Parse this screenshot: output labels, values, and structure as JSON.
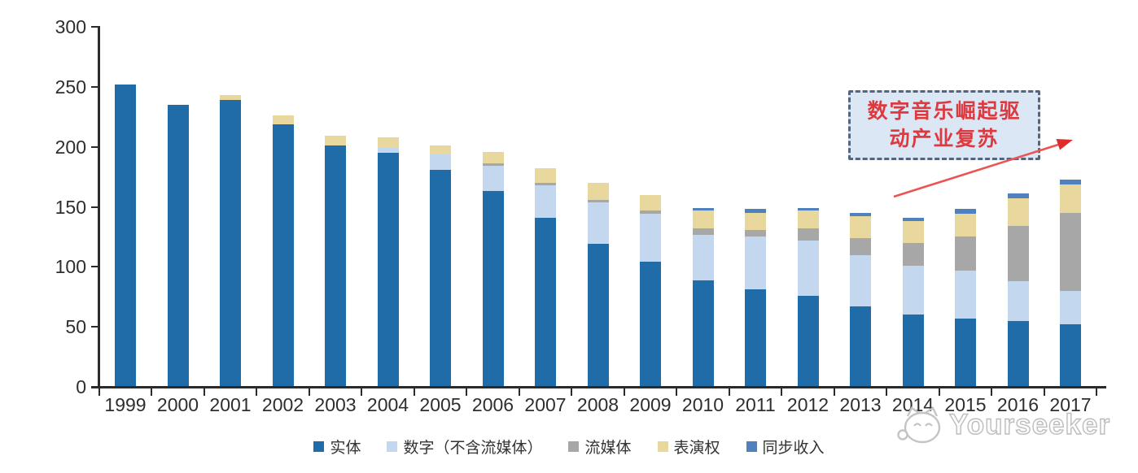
{
  "chart_data": {
    "type": "bar",
    "subtype": "stacked",
    "title": "",
    "xlabel": "",
    "ylabel": "",
    "categories": [
      "1999",
      "2000",
      "2001",
      "2002",
      "2003",
      "2004",
      "2005",
      "2006",
      "2007",
      "2008",
      "2009",
      "2010",
      "2011",
      "2012",
      "2013",
      "2014",
      "2015",
      "2016",
      "2017"
    ],
    "series": [
      {
        "name": "实体",
        "color": "#1f6ca8",
        "values": [
          252,
          235,
          239,
          219,
          201,
          195,
          181,
          163,
          141,
          119,
          104,
          89,
          81,
          76,
          67,
          60,
          57,
          55,
          52
        ]
      },
      {
        "name": "数字（不含流媒体）",
        "color": "#c3d7ee",
        "values": [
          0,
          0,
          0,
          0,
          0,
          4,
          13,
          21,
          27,
          35,
          40,
          38,
          44,
          46,
          43,
          41,
          40,
          33,
          28
        ]
      },
      {
        "name": "流媒体",
        "color": "#a7a7a7",
        "values": [
          0,
          0,
          0,
          0,
          0,
          0,
          0,
          2,
          2,
          2,
          3,
          5,
          6,
          10,
          14,
          19,
          28,
          46,
          65
        ]
      },
      {
        "name": "表演权",
        "color": "#e9d89d",
        "values": [
          0,
          0,
          4,
          7,
          8,
          9,
          7,
          10,
          12,
          14,
          13,
          15,
          14,
          15,
          18,
          18,
          19,
          23,
          24
        ]
      },
      {
        "name": "同步收入",
        "color": "#4e81bd",
        "values": [
          0,
          0,
          0,
          0,
          0,
          0,
          0,
          0,
          0,
          0,
          0,
          2,
          3,
          2,
          3,
          3,
          4,
          4,
          4
        ]
      }
    ],
    "ylim": [
      0,
      300
    ],
    "yticks": [
      0,
      50,
      100,
      150,
      200,
      250,
      300
    ],
    "legend_position": "bottom",
    "grid": false
  },
  "annotation": {
    "line1": "数字音乐崛起驱",
    "line2": "动产业复苏",
    "text_color": "#dd3a40",
    "box_fill": "#dbe7f5",
    "box_border": "#53657f",
    "arrow_color": "#e34040"
  },
  "watermark": {
    "icon": "cat-face-icon",
    "text": "Yourseeker"
  }
}
